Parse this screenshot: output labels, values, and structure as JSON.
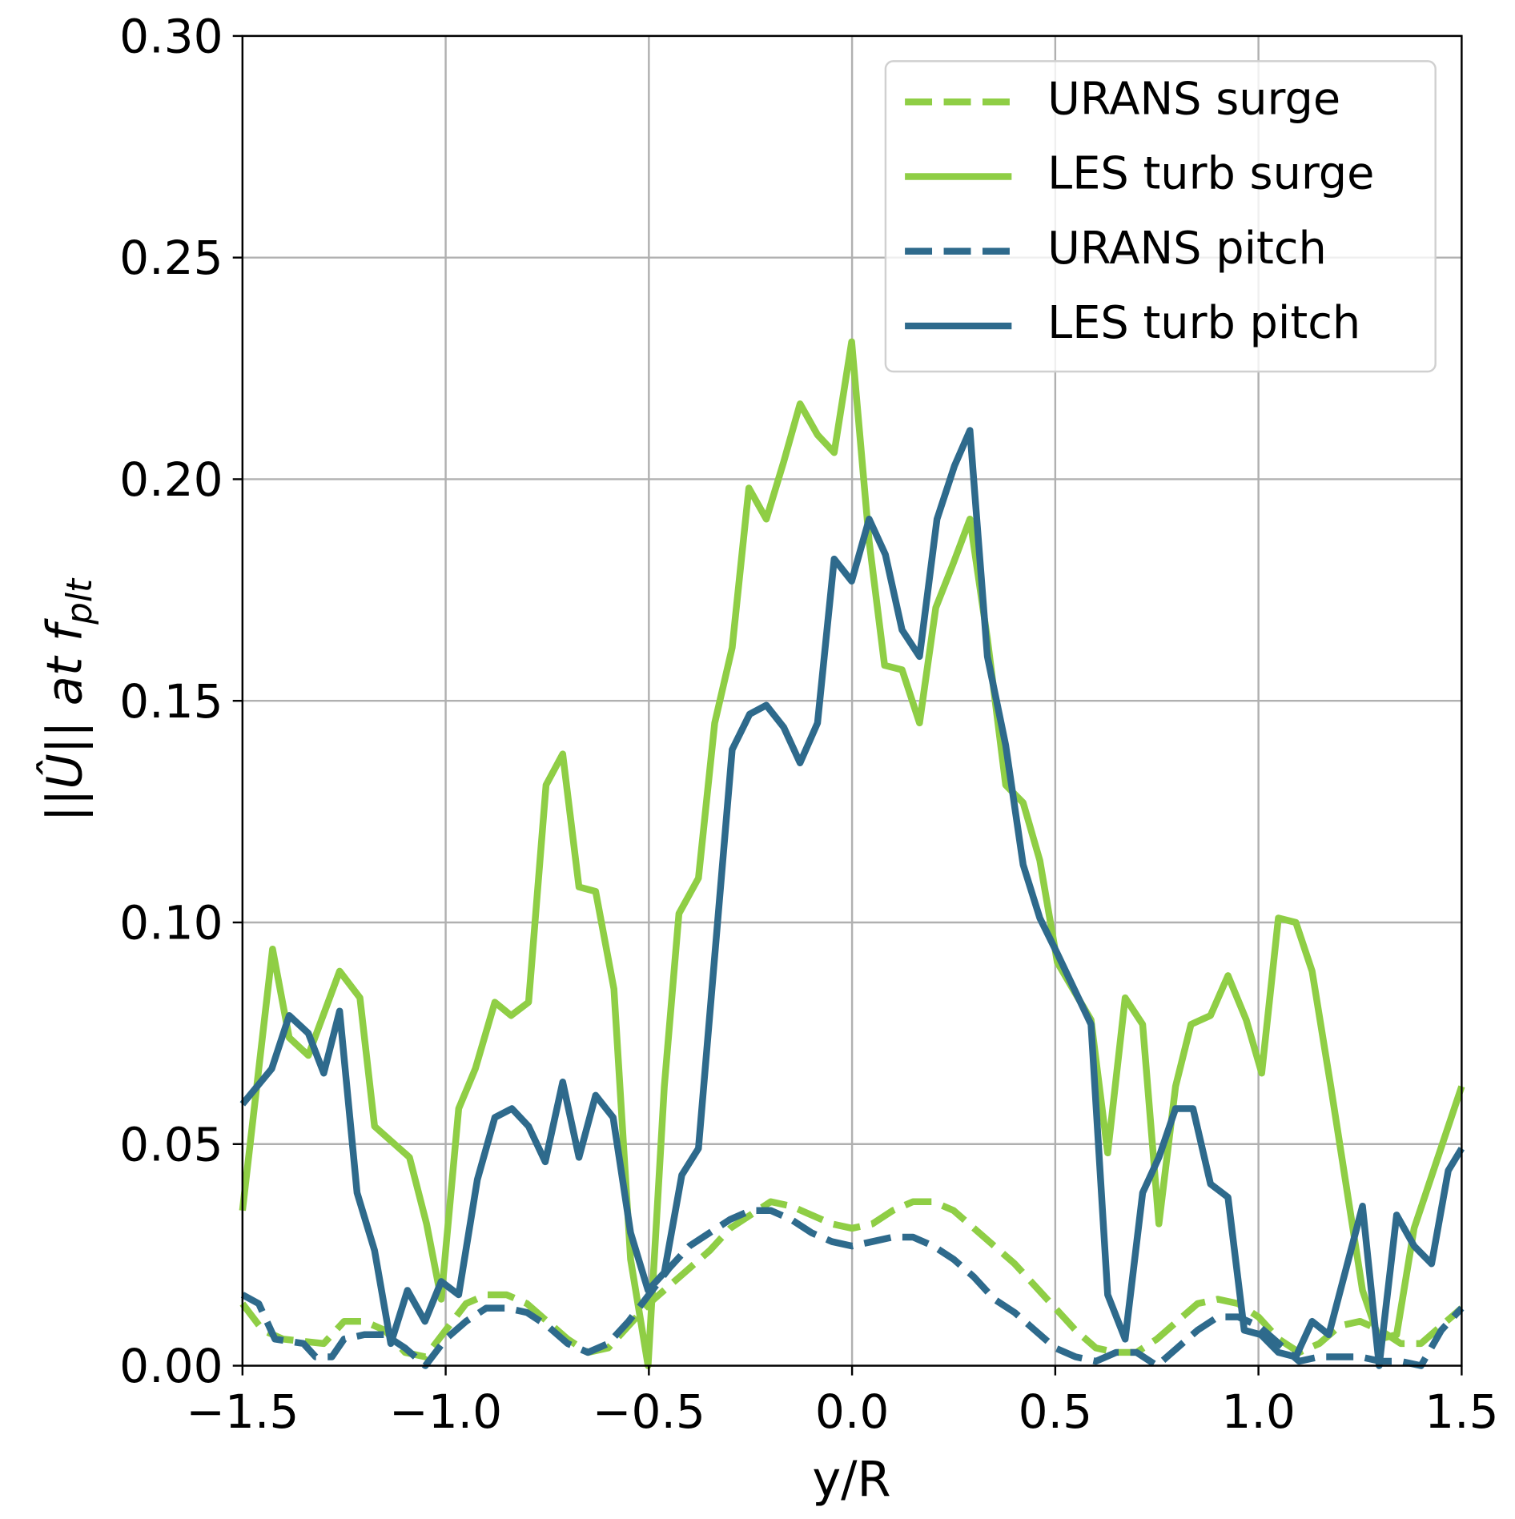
{
  "chart_data": {
    "type": "line",
    "xlabel": "y/R",
    "ylabel": {
      "text": "||Û|| at f",
      "subscript": "plt"
    },
    "xlim": [
      -1.5,
      1.5
    ],
    "ylim": [
      0,
      0.3
    ],
    "xticks": [
      {
        "value": -1.5,
        "label": "−1.5"
      },
      {
        "value": -1.0,
        "label": "−1.0"
      },
      {
        "value": -0.5,
        "label": "−0.5"
      },
      {
        "value": 0.0,
        "label": "0.0"
      },
      {
        "value": 0.5,
        "label": "0.5"
      },
      {
        "value": 1.0,
        "label": "1.0"
      },
      {
        "value": 1.5,
        "label": "1.5"
      }
    ],
    "yticks": [
      {
        "value": 0,
        "label": "0.00"
      },
      {
        "value": 0.05,
        "label": "0.05"
      },
      {
        "value": 0.1,
        "label": "0.10"
      },
      {
        "value": 0.15,
        "label": "0.15"
      },
      {
        "value": 0.2,
        "label": "0.20"
      },
      {
        "value": 0.25,
        "label": "0.25"
      },
      {
        "value": 0.3,
        "label": "0.30"
      }
    ],
    "grid": true,
    "legend": "upper right",
    "series": [
      {
        "name": "URANS surge",
        "color": "#8fce45",
        "linestyle": "dashed",
        "x": [
          -1.5,
          -1.45,
          -1.4,
          -1.3,
          -1.25,
          -1.2,
          -1.15,
          -1.1,
          -1.05,
          -1.0,
          -0.95,
          -0.9,
          -0.85,
          -0.8,
          -0.75,
          -0.7,
          -0.65,
          -0.6,
          -0.55,
          -0.5,
          -0.45,
          -0.4,
          -0.35,
          -0.3,
          -0.25,
          -0.2,
          -0.15,
          -0.1,
          -0.05,
          0.0,
          0.05,
          0.1,
          0.15,
          0.2,
          0.25,
          0.3,
          0.35,
          0.4,
          0.45,
          0.5,
          0.55,
          0.6,
          0.65,
          0.7,
          0.75,
          0.8,
          0.85,
          0.9,
          0.95,
          1.0,
          1.05,
          1.1,
          1.15,
          1.2,
          1.25,
          1.3,
          1.35,
          1.4,
          1.45,
          1.5
        ],
        "values": [
          0.014,
          0.008,
          0.006,
          0.005,
          0.01,
          0.01,
          0.008,
          0.003,
          0.002,
          0.008,
          0.014,
          0.016,
          0.016,
          0.014,
          0.01,
          0.006,
          0.003,
          0.004,
          0.009,
          0.014,
          0.018,
          0.022,
          0.026,
          0.031,
          0.034,
          0.037,
          0.036,
          0.034,
          0.032,
          0.031,
          0.032,
          0.035,
          0.037,
          0.037,
          0.035,
          0.031,
          0.027,
          0.023,
          0.018,
          0.013,
          0.008,
          0.004,
          0.003,
          0.003,
          0.006,
          0.01,
          0.014,
          0.015,
          0.014,
          0.011,
          0.006,
          0.003,
          0.005,
          0.009,
          0.01,
          0.008,
          0.005,
          0.005,
          0.009,
          0.013
        ]
      },
      {
        "name": "LES turb surge",
        "color": "#8fce45",
        "linestyle": "solid",
        "x": [
          -1.5,
          -1.426,
          -1.385,
          -1.338,
          -1.261,
          -1.211,
          -1.175,
          -1.089,
          -1.047,
          -1.011,
          -0.968,
          -0.927,
          -0.879,
          -0.839,
          -0.796,
          -0.753,
          -0.712,
          -0.672,
          -0.631,
          -0.586,
          -0.545,
          -0.502,
          -0.462,
          -0.426,
          -0.378,
          -0.338,
          -0.295,
          -0.254,
          -0.211,
          -0.168,
          -0.128,
          -0.085,
          -0.044,
          -0.001,
          0.042,
          0.08,
          0.123,
          0.166,
          0.206,
          0.249,
          0.29,
          0.333,
          0.378,
          0.421,
          0.462,
          0.505,
          0.588,
          0.629,
          0.672,
          0.715,
          0.755,
          0.796,
          0.834,
          0.882,
          0.925,
          0.97,
          1.008,
          1.049,
          1.092,
          1.132,
          1.178,
          1.256,
          1.297,
          1.34,
          1.383,
          1.5
        ],
        "values": [
          0.035,
          0.094,
          0.074,
          0.07,
          0.089,
          0.083,
          0.054,
          0.047,
          0.032,
          0.015,
          0.058,
          0.067,
          0.082,
          0.079,
          0.082,
          0.131,
          0.138,
          0.108,
          0.107,
          0.085,
          0.024,
          0.0,
          0.063,
          0.102,
          0.11,
          0.145,
          0.162,
          0.198,
          0.191,
          0.204,
          0.217,
          0.21,
          0.206,
          0.231,
          0.186,
          0.158,
          0.157,
          0.145,
          0.171,
          0.181,
          0.191,
          0.164,
          0.131,
          0.127,
          0.114,
          0.091,
          0.078,
          0.048,
          0.083,
          0.077,
          0.032,
          0.063,
          0.077,
          0.079,
          0.088,
          0.078,
          0.066,
          0.101,
          0.1,
          0.089,
          0.063,
          0.017,
          0.006,
          0.007,
          0.031,
          0.063
        ]
      },
      {
        "name": "URANS pitch",
        "color": "#2e6a8c",
        "linestyle": "dashed",
        "x": [
          -1.5,
          -1.46,
          -1.42,
          -1.35,
          -1.32,
          -1.28,
          -1.25,
          -1.2,
          -1.15,
          -1.1,
          -1.05,
          -1.0,
          -0.95,
          -0.9,
          -0.85,
          -0.8,
          -0.75,
          -0.7,
          -0.65,
          -0.6,
          -0.55,
          -0.5,
          -0.45,
          -0.4,
          -0.35,
          -0.3,
          -0.25,
          -0.2,
          -0.15,
          -0.1,
          -0.05,
          0.0,
          0.05,
          0.1,
          0.15,
          0.2,
          0.25,
          0.3,
          0.35,
          0.4,
          0.45,
          0.5,
          0.55,
          0.6,
          0.65,
          0.7,
          0.75,
          0.8,
          0.85,
          0.9,
          0.95,
          1.0,
          1.05,
          1.1,
          1.15,
          1.2,
          1.25,
          1.3,
          1.35,
          1.4,
          1.45,
          1.5
        ],
        "values": [
          0.016,
          0.014,
          0.006,
          0.005,
          0.002,
          0.002,
          0.006,
          0.007,
          0.007,
          0.004,
          0.0,
          0.006,
          0.01,
          0.013,
          0.013,
          0.012,
          0.009,
          0.005,
          0.003,
          0.005,
          0.01,
          0.016,
          0.022,
          0.027,
          0.03,
          0.033,
          0.035,
          0.035,
          0.033,
          0.03,
          0.028,
          0.027,
          0.028,
          0.029,
          0.029,
          0.027,
          0.024,
          0.02,
          0.015,
          0.012,
          0.008,
          0.004,
          0.002,
          0.001,
          0.003,
          0.003,
          0.0,
          0.004,
          0.008,
          0.011,
          0.011,
          0.009,
          0.005,
          0.001,
          0.002,
          0.002,
          0.002,
          0.001,
          0.001,
          0.0,
          0.008,
          0.013
        ]
      },
      {
        "name": "LES turb pitch",
        "color": "#2e6a8c",
        "linestyle": "solid",
        "x": [
          -1.5,
          -1.428,
          -1.385,
          -1.338,
          -1.3,
          -1.261,
          -1.218,
          -1.175,
          -1.135,
          -1.094,
          -1.051,
          -1.011,
          -0.968,
          -0.922,
          -0.879,
          -0.837,
          -0.796,
          -0.755,
          -0.712,
          -0.672,
          -0.631,
          -0.588,
          -0.545,
          -0.502,
          -0.462,
          -0.419,
          -0.378,
          -0.295,
          -0.252,
          -0.211,
          -0.168,
          -0.128,
          -0.085,
          -0.044,
          -0.001,
          0.042,
          0.082,
          0.123,
          0.166,
          0.209,
          0.252,
          0.29,
          0.333,
          0.378,
          0.421,
          0.462,
          0.505,
          0.588,
          0.629,
          0.672,
          0.715,
          0.755,
          0.796,
          0.839,
          0.882,
          0.925,
          0.965,
          1.006,
          1.049,
          1.092,
          1.132,
          1.173,
          1.256,
          1.297,
          1.34,
          1.383,
          1.426,
          1.467,
          1.5
        ],
        "values": [
          0.059,
          0.067,
          0.079,
          0.075,
          0.066,
          0.08,
          0.039,
          0.026,
          0.005,
          0.017,
          0.01,
          0.019,
          0.016,
          0.042,
          0.056,
          0.058,
          0.054,
          0.046,
          0.064,
          0.047,
          0.061,
          0.056,
          0.03,
          0.017,
          0.021,
          0.043,
          0.049,
          0.139,
          0.147,
          0.149,
          0.144,
          0.136,
          0.145,
          0.182,
          0.177,
          0.191,
          0.183,
          0.166,
          0.16,
          0.191,
          0.203,
          0.211,
          0.16,
          0.14,
          0.113,
          0.101,
          0.093,
          0.077,
          0.016,
          0.006,
          0.039,
          0.047,
          0.058,
          0.058,
          0.041,
          0.038,
          0.008,
          0.007,
          0.003,
          0.002,
          0.01,
          0.007,
          0.036,
          0.0,
          0.034,
          0.027,
          0.023,
          0.044,
          0.049
        ]
      }
    ]
  }
}
